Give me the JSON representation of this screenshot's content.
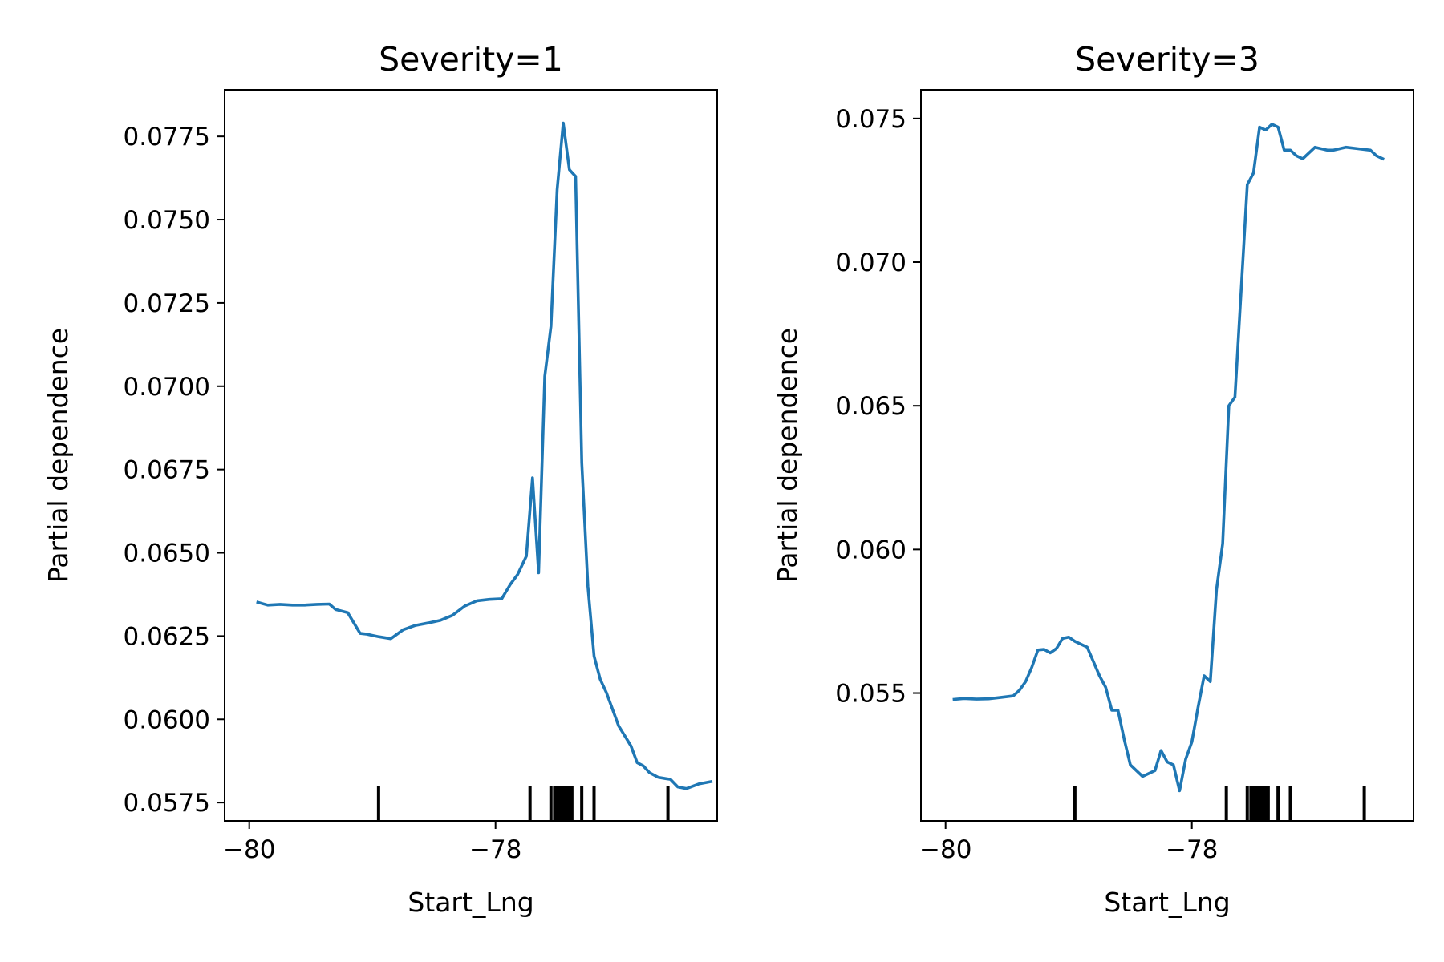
{
  "chart_data": [
    {
      "type": "line",
      "title": "Severity=1",
      "xlabel": "Start_Lng",
      "ylabel": "Partial dependence",
      "xlim": [
        -80.2,
        -76.2
      ],
      "ylim": [
        0.05695,
        0.0789
      ],
      "xticks": [
        {
          "value": -80,
          "label": "−80"
        },
        {
          "value": -78,
          "label": "−78"
        }
      ],
      "yticks": [
        {
          "value": 0.0575,
          "label": "0.0575"
        },
        {
          "value": 0.06,
          "label": "0.0600"
        },
        {
          "value": 0.0625,
          "label": "0.0625"
        },
        {
          "value": 0.065,
          "label": "0.0650"
        },
        {
          "value": 0.0675,
          "label": "0.0675"
        },
        {
          "value": 0.07,
          "label": "0.0700"
        },
        {
          "value": 0.0725,
          "label": "0.0725"
        },
        {
          "value": 0.075,
          "label": "0.0750"
        },
        {
          "value": 0.0775,
          "label": "0.0775"
        }
      ],
      "series": [
        {
          "color": "#1f77b4",
          "x": [
            -79.93,
            -79.85,
            -79.75,
            -79.65,
            -79.55,
            -79.45,
            -79.35,
            -79.3,
            -79.2,
            -79.1,
            -79.05,
            -79.0,
            -78.95,
            -78.85,
            -78.75,
            -78.65,
            -78.55,
            -78.45,
            -78.35,
            -78.25,
            -78.15,
            -78.05,
            -77.95,
            -77.88,
            -77.82,
            -77.75,
            -77.7,
            -77.65,
            -77.6,
            -77.55,
            -77.5,
            -77.45,
            -77.4,
            -77.35,
            -77.3,
            -77.25,
            -77.2,
            -77.15,
            -77.1,
            -77.0,
            -76.95,
            -76.9,
            -76.85,
            -76.8,
            -76.75,
            -76.68,
            -76.62,
            -76.58,
            -76.52,
            -76.45,
            -76.35,
            -76.25
          ],
          "y": [
            0.06351,
            0.06343,
            0.06345,
            0.06343,
            0.06343,
            0.06345,
            0.06346,
            0.0633,
            0.0632,
            0.06258,
            0.06256,
            0.06252,
            0.06248,
            0.06242,
            0.06269,
            0.06282,
            0.06289,
            0.06297,
            0.06312,
            0.0634,
            0.06356,
            0.0636,
            0.06362,
            0.06405,
            0.06435,
            0.0649,
            0.06725,
            0.0644,
            0.0703,
            0.0718,
            0.0759,
            0.0779,
            0.0765,
            0.0763,
            0.0677,
            0.064,
            0.0619,
            0.0612,
            0.0608,
            0.0598,
            0.0595,
            0.0592,
            0.0587,
            0.0586,
            0.0584,
            0.05826,
            0.05822,
            0.0582,
            0.05797,
            0.05792,
            0.05806,
            0.05813
          ]
        }
      ],
      "rug_x": [
        -78.95,
        -77.72,
        -77.55,
        -77.52,
        -77.5,
        -77.48,
        -77.46,
        -77.44,
        -77.42,
        -77.4,
        -77.38,
        -77.3,
        -77.2,
        -76.6
      ]
    },
    {
      "type": "line",
      "title": "Severity=3",
      "xlabel": "Start_Lng",
      "ylabel": "Partial dependence",
      "xlim": [
        -80.2,
        -76.2
      ],
      "ylim": [
        0.05055,
        0.076
      ],
      "xticks": [
        {
          "value": -80,
          "label": "−80"
        },
        {
          "value": -78,
          "label": "−78"
        }
      ],
      "yticks": [
        {
          "value": 0.055,
          "label": "0.055"
        },
        {
          "value": 0.06,
          "label": "0.060"
        },
        {
          "value": 0.065,
          "label": "0.065"
        },
        {
          "value": 0.07,
          "label": "0.070"
        },
        {
          "value": 0.075,
          "label": "0.075"
        }
      ],
      "series": [
        {
          "color": "#1f77b4",
          "x": [
            -79.93,
            -79.85,
            -79.75,
            -79.65,
            -79.55,
            -79.45,
            -79.4,
            -79.35,
            -79.3,
            -79.25,
            -79.2,
            -79.15,
            -79.1,
            -79.05,
            -79.0,
            -78.95,
            -78.9,
            -78.85,
            -78.75,
            -78.7,
            -78.65,
            -78.6,
            -78.55,
            -78.5,
            -78.45,
            -78.4,
            -78.35,
            -78.3,
            -78.25,
            -78.2,
            -78.15,
            -78.1,
            -78.05,
            -78.0,
            -77.95,
            -77.9,
            -77.85,
            -77.8,
            -77.75,
            -77.7,
            -77.65,
            -77.6,
            -77.55,
            -77.5,
            -77.45,
            -77.4,
            -77.35,
            -77.3,
            -77.25,
            -77.2,
            -77.15,
            -77.1,
            -77.0,
            -76.9,
            -76.85,
            -76.75,
            -76.65,
            -76.55,
            -76.5,
            -76.45
          ],
          "y": [
            0.05478,
            0.05481,
            0.05479,
            0.0548,
            0.05485,
            0.0549,
            0.0551,
            0.0554,
            0.0559,
            0.0565,
            0.05652,
            0.0564,
            0.05655,
            0.0569,
            0.05695,
            0.0568,
            0.0567,
            0.0566,
            0.0556,
            0.0552,
            0.0544,
            0.0544,
            0.0534,
            0.0525,
            0.0523,
            0.0521,
            0.0522,
            0.0523,
            0.053,
            0.0526,
            0.0525,
            0.0516,
            0.0527,
            0.0533,
            0.0545,
            0.0556,
            0.0554,
            0.0586,
            0.0602,
            0.065,
            0.0653,
            0.069,
            0.0727,
            0.0731,
            0.0747,
            0.0746,
            0.0748,
            0.0747,
            0.0739,
            0.0739,
            0.0737,
            0.0736,
            0.074,
            0.0739,
            0.0739,
            0.074,
            0.07395,
            0.0739,
            0.0737,
            0.0736
          ]
        }
      ],
      "rug_x": [
        -78.95,
        -77.72,
        -77.55,
        -77.52,
        -77.5,
        -77.48,
        -77.46,
        -77.44,
        -77.42,
        -77.4,
        -77.38,
        -77.3,
        -77.2,
        -76.6
      ]
    }
  ]
}
